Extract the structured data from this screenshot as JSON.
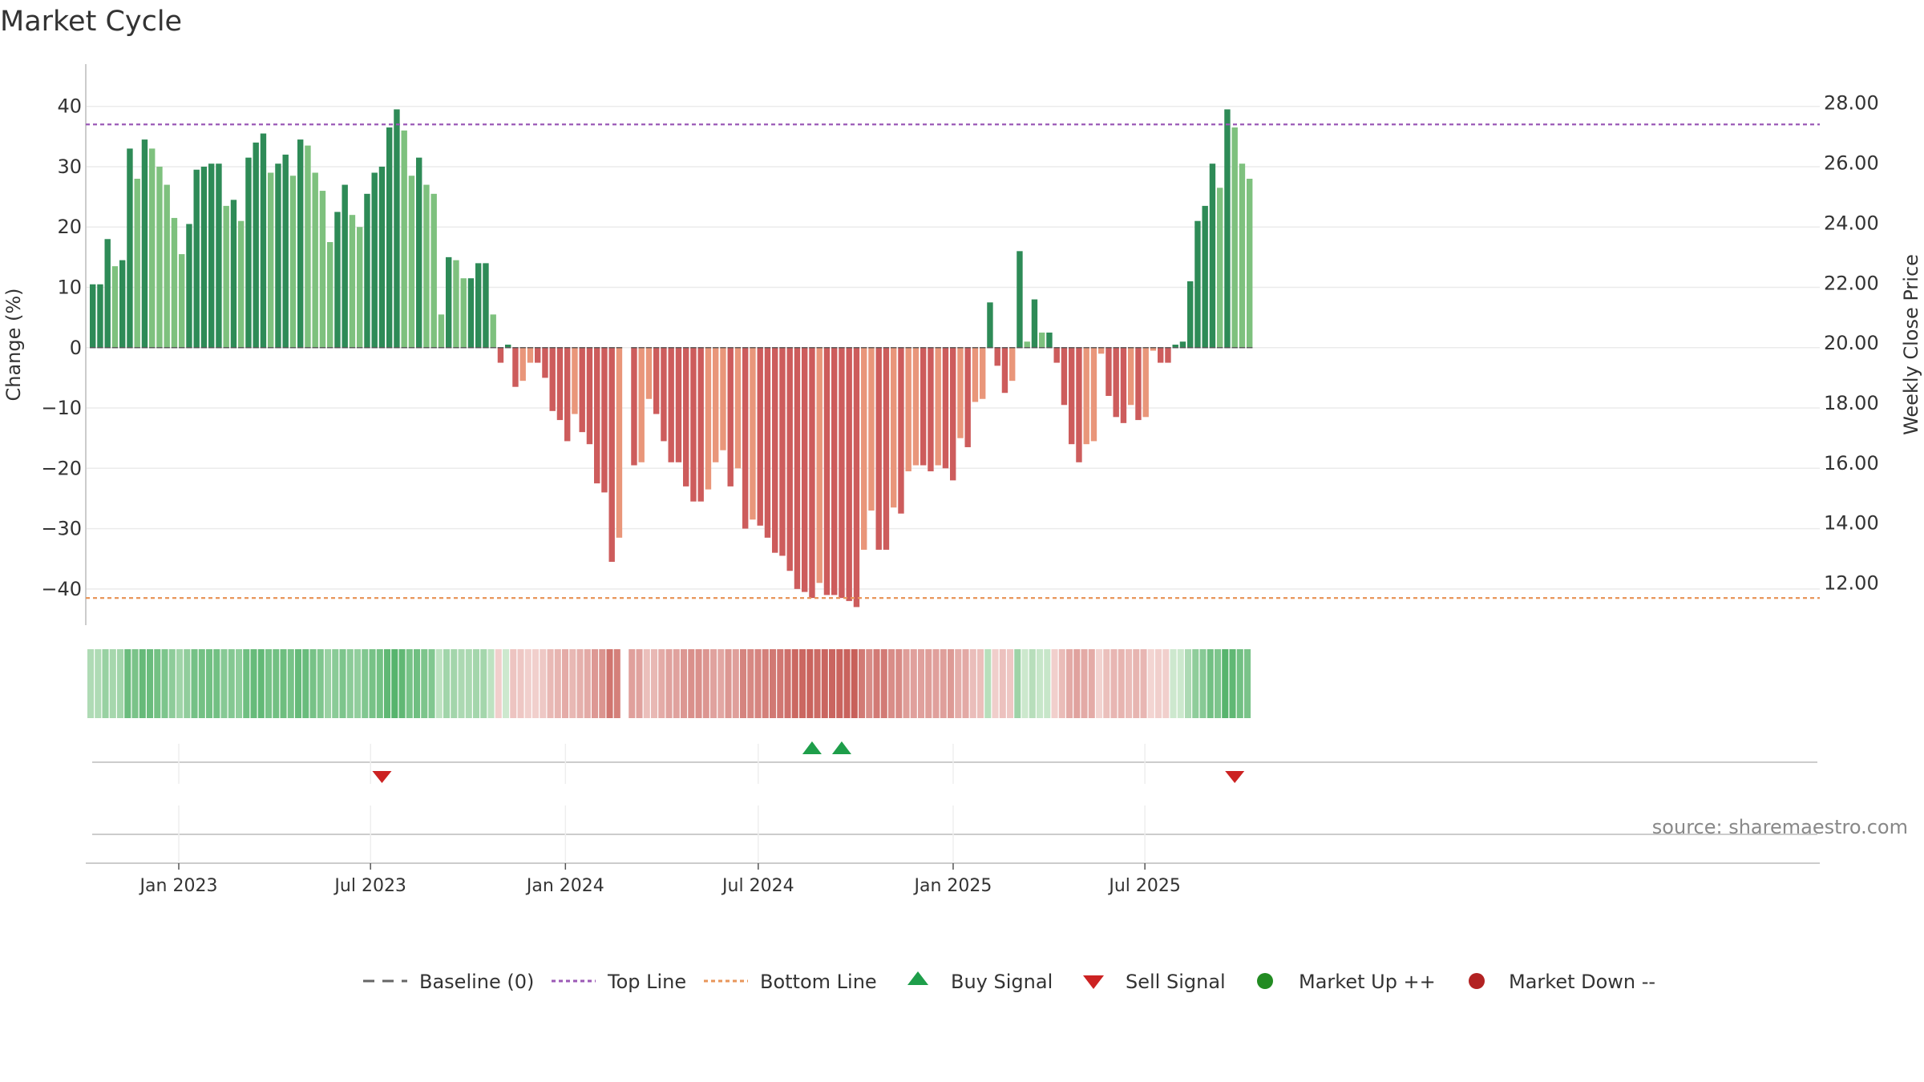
{
  "chart_data": {
    "type": "bar",
    "title": "Market Cycle",
    "ylabel": "Change (%)",
    "y2label": "Weekly Close Price",
    "ylim": [
      -46,
      47
    ],
    "y2lim": [
      10.6,
      29.3
    ],
    "yticks": [
      40,
      30,
      20,
      10,
      0,
      -10,
      -20,
      -30,
      -40
    ],
    "yticks_labels": [
      "40",
      "30",
      "20",
      "10",
      "0",
      "−10",
      "−20",
      "−30",
      "−40"
    ],
    "y2ticks": [
      28,
      26,
      24,
      22,
      20,
      18,
      16,
      14,
      12
    ],
    "y2ticks_labels": [
      "28.00",
      "26.00",
      "24.00",
      "22.00",
      "20.00",
      "18.00",
      "16.00",
      "14.00",
      "12.00"
    ],
    "top_line": 37,
    "bottom_line": -41.5,
    "x_start": "2022-10-09",
    "x_step_days": 7,
    "values": [
      10.5,
      10.5,
      18,
      13.5,
      14.5,
      33,
      28,
      34.5,
      33,
      30,
      27,
      21.5,
      15.5,
      20.5,
      29.5,
      30,
      30.5,
      30.5,
      23.5,
      24.5,
      21,
      31.5,
      34,
      35.5,
      29,
      30.5,
      32,
      28.5,
      34.5,
      33.5,
      29,
      26,
      17.5,
      22.5,
      27,
      22,
      20,
      25.5,
      29,
      30,
      36.5,
      39.5,
      36,
      28.5,
      31.5,
      27,
      25.5,
      5.5,
      15,
      14.5,
      11.5,
      11.5,
      14,
      14,
      5.5,
      -2.5,
      0.5,
      -6.5,
      -5.5,
      -2.5,
      -2.5,
      -5,
      -10.5,
      -12,
      -15.5,
      -11,
      -14,
      -16,
      -22.5,
      -24,
      -35.5,
      -31.5,
      null,
      -19.5,
      -19,
      -8.5,
      -11,
      -15.5,
      -19,
      -19,
      -23,
      -25.5,
      -25.5,
      -23.5,
      -19,
      -17,
      -23,
      -20,
      -30,
      -28.5,
      -29.5,
      -31.5,
      -34,
      -34.5,
      -37,
      -40,
      -40.5,
      -41.5,
      -39,
      -41,
      -41,
      -41.5,
      -42,
      -43,
      -33.5,
      -27,
      -33.5,
      -33.5,
      -26.5,
      -27.5,
      -20.5,
      -19.5,
      -19.5,
      -20.5,
      -19.5,
      -20,
      -22,
      -15,
      -16.5,
      -9,
      -8.5,
      7.5,
      -3,
      -7.5,
      -5.5,
      16,
      1,
      8,
      2.5,
      2.5,
      -2.5,
      -9.5,
      -16,
      -19,
      -16,
      -15.5,
      -1,
      -8,
      -11.5,
      -12.5,
      -9.5,
      -12,
      -11.5,
      -0.5,
      -2.5,
      -2.5,
      0.5,
      1,
      11,
      21,
      23.5,
      30.5,
      26.5,
      39.5,
      36.5,
      30.5,
      28
    ],
    "legend": [
      "Baseline (0)",
      "Top Line",
      "Bottom Line",
      "Buy Signal",
      "Sell Signal",
      "Market Up ++",
      "Market Down --"
    ],
    "x_ticks": [
      "Jan 2023",
      "Jul 2023",
      "Jan 2024",
      "Jul 2024",
      "Jan 2025",
      "Jul 2025"
    ],
    "buy_signals": [
      "2024-08-18",
      "2024-09-15"
    ],
    "sell_signals": [
      "2023-07-09",
      "2025-09-21"
    ],
    "source": "source: sharemaestro.com"
  },
  "colors": {
    "up_dark": "#2e8b57",
    "up_light": "#7ec17e",
    "down_dark": "#cd5c5c",
    "down_light": "#e9967a",
    "top_line": "#9b59b6",
    "bottom_line": "#e8965a",
    "buy": "#1e9e4a",
    "sell": "#cc2222",
    "market_up": "#228b22",
    "market_down": "#b22222"
  }
}
